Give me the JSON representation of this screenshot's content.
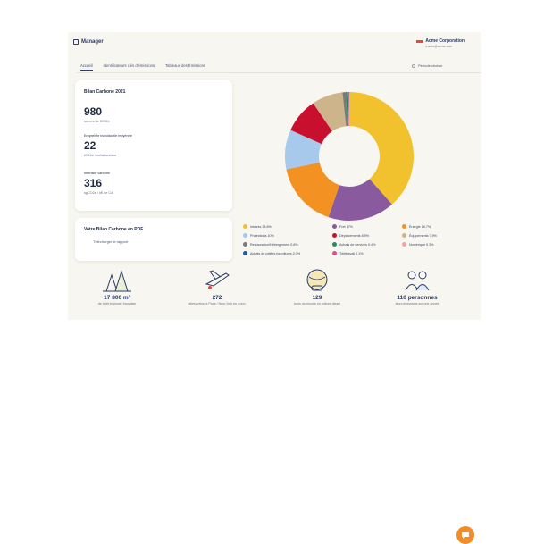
{
  "app": {
    "name": "Manager"
  },
  "company": {
    "name": "Acme Corporation",
    "email": "c.adm@acme.com"
  },
  "tabs": [
    {
      "label": "Accueil",
      "active": true
    },
    {
      "label": "Identificateurs clés d'émissions",
      "active": false
    },
    {
      "label": "Tableaux des Émissions",
      "active": false
    }
  ],
  "filter": {
    "label": "Période choisie"
  },
  "stats_card": {
    "title": "Bilan Carbone 2021",
    "items": [
      {
        "value": "980",
        "label": "tonnes de tCO2e",
        "heading": ""
      },
      {
        "value": "22",
        "label": "tCO2e / collaborateur",
        "heading": "Empreinte individuelle moyenne"
      },
      {
        "value": "316",
        "label": "kgCO2e / k€ de CA",
        "heading": "Intensité carbone"
      }
    ]
  },
  "pdf_card": {
    "title": "Votre Bilan Carbone en PDF",
    "link": "Télécharger le rapport"
  },
  "chart_data": {
    "type": "pie",
    "donut": true,
    "series": [
      {
        "name": "Intrants",
        "value": 38.8,
        "color": "#f2c12e"
      },
      {
        "name": "Fret",
        "value": 17.0,
        "color": "#8a5a9e"
      },
      {
        "name": "Énergie",
        "value": 16.7,
        "color": "#f39223"
      },
      {
        "name": "Protections",
        "value": 10.0,
        "color": "#a7c9ec"
      },
      {
        "name": "Déplacements",
        "value": 8.9,
        "color": "#c8102e"
      },
      {
        "name": "Équipements",
        "value": 7.9,
        "color": "#cdb48b"
      },
      {
        "name": "Restauration/Hébergement",
        "value": 0.8,
        "color": "#7a7a7a"
      },
      {
        "name": "Achats de services",
        "value": 0.4,
        "color": "#2a8a5a"
      },
      {
        "name": "Numérique",
        "value": 0.3,
        "color": "#f5a3a3"
      },
      {
        "name": "Achats de petites fournitures",
        "value": 0.1,
        "color": "#1d5aa8"
      },
      {
        "name": "Télétravail",
        "value": 0.1,
        "color": "#e64b8c"
      }
    ]
  },
  "legend": [
    {
      "label": "Intrants 38.8%",
      "color": "#f2c12e"
    },
    {
      "label": "Fret 17%",
      "color": "#8a5a9e"
    },
    {
      "label": "Énergie 16.7%",
      "color": "#f39223"
    },
    {
      "label": "Protections 10%",
      "color": "#a7c9ec"
    },
    {
      "label": "Déplacements 8.9%",
      "color": "#c8102e"
    },
    {
      "label": "Équipements 7.9%",
      "color": "#cdb48b"
    },
    {
      "label": "Restauration/Hébergement 0.8%",
      "color": "#7a7a7a"
    },
    {
      "label": "Achats de services 0.4%",
      "color": "#2a8a5a"
    },
    {
      "label": "Numérique 0.3%",
      "color": "#f5a3a3"
    },
    {
      "label": "Achats de petites fournitures 0.1%",
      "color": "#1d5aa8"
    },
    {
      "label": "Télétravail 0.1%",
      "color": "#e64b8c"
    }
  ],
  "kpis": [
    {
      "value": "17 800 m²",
      "label": "de forêt tropicale française",
      "icon": "forest-icon"
    },
    {
      "value": "272",
      "label": "allers-retours Paris / New-York en avion",
      "icon": "plane-icon"
    },
    {
      "value": "129",
      "label": "tours du monde en voiture diesel",
      "icon": "globe-icon"
    },
    {
      "value": "110 personnes",
      "label": "leurs émissions sur une année",
      "icon": "people-icon"
    }
  ]
}
